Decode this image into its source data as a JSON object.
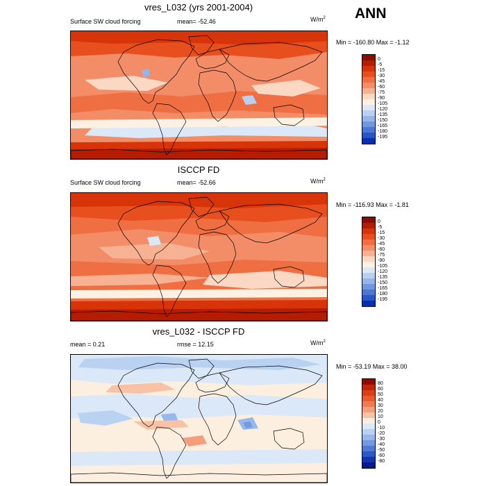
{
  "season": "ANN",
  "panels": [
    {
      "title": "vres_L032 (yrs 2001-2004)",
      "left_text": "Surface SW cloud forcing",
      "center_text": "mean= -52.46",
      "units_base": "W/m",
      "units_exp": "2",
      "minmax": "Min = -160.80 Max =  -1.12",
      "colorbar": {
        "labels": [
          "0",
          "-5",
          "-15",
          "-30",
          "-45",
          "-60",
          "-75",
          "-90",
          "-105",
          "-120",
          "-135",
          "-150",
          "-165",
          "-180",
          "-195"
        ],
        "colors": [
          "#8b0c00",
          "#b51c00",
          "#d8340a",
          "#e84f1e",
          "#ef6e42",
          "#f38d68",
          "#f7b293",
          "#fbd8c3",
          "#fdf1e4",
          "#dbe8f7",
          "#b8d1f2",
          "#94b6ec",
          "#6f97e2",
          "#4b78d8",
          "#2856c8",
          "#0a2eb0"
        ]
      }
    },
    {
      "title": "ISCCP FD",
      "left_text": "Surface SW cloud forcing",
      "center_text": "mean= -52.66",
      "units_base": "W/m",
      "units_exp": "2",
      "minmax": "Min = -116.93 Max =  -1.81",
      "colorbar": {
        "labels": [
          "0",
          "-5",
          "-15",
          "-30",
          "-45",
          "-60",
          "-75",
          "-90",
          "-105",
          "-120",
          "-135",
          "-150",
          "-165",
          "-180",
          "-195"
        ],
        "colors": [
          "#8b0c00",
          "#b51c00",
          "#d8340a",
          "#e84f1e",
          "#ef6e42",
          "#f38d68",
          "#f7b293",
          "#fbd8c3",
          "#fdf1e4",
          "#dbe8f7",
          "#b8d1f2",
          "#94b6ec",
          "#6f97e2",
          "#4b78d8",
          "#2856c8",
          "#0a2eb0"
        ]
      }
    },
    {
      "title": "vres_L032 - ISCCP FD",
      "left_text": "mean =   0.21",
      "center_text": "rmse =  12.15",
      "units_base": "W/m",
      "units_exp": "2",
      "minmax": "Min = -53.19 Max = 38.00",
      "colorbar": {
        "labels": [
          "80",
          "60",
          "50",
          "40",
          "30",
          "20",
          "10",
          "0",
          "-10",
          "-20",
          "-30",
          "-40",
          "-50",
          "-60",
          "-80"
        ],
        "colors": [
          "#8b0c00",
          "#c2250a",
          "#dd3d14",
          "#ea5a2c",
          "#f07b50",
          "#f49e7c",
          "#f8c2a7",
          "#fcefdf",
          "#dbe8f7",
          "#b9d2f2",
          "#96b8ec",
          "#7399e2",
          "#4f7ad8",
          "#2c58c8",
          "#0f35b2",
          "#04198c"
        ]
      }
    }
  ]
}
